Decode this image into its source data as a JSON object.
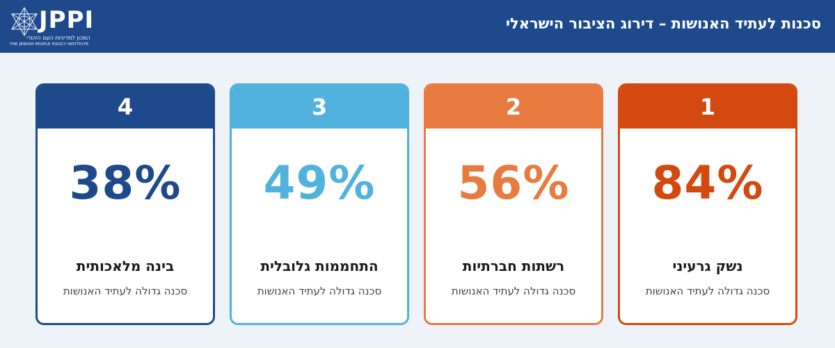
{
  "header": {
    "title": "סכנות לעתיד האנושות – דירוג הציבור הישראלי",
    "logo_text": "JPPI",
    "logo_sub_he": "המכון למדיניות העם היהודי",
    "logo_sub_en": "THE JEWISH PEOPLE POLICY INSTITUTE"
  },
  "colors": {
    "header_bg": "#1e4a8c",
    "page_bg": "#eef3f9"
  },
  "chart_data": {
    "type": "bar",
    "title": "סכנות לעתיד האנושות – דירוג הציבור הישראלי",
    "unit": "%",
    "items": [
      {
        "rank": "1",
        "value": 84,
        "value_label": "84%",
        "category": "נשק גרעיני",
        "sublabel": "סכנה גדולה לעתיד האנושות",
        "color": "#d4490f"
      },
      {
        "rank": "2",
        "value": 56,
        "value_label": "56%",
        "category": "רשתות חברתיות",
        "sublabel": "סכנה גדולה לעתיד האנושות",
        "color": "#e87b40"
      },
      {
        "rank": "3",
        "value": 49,
        "value_label": "49%",
        "category": "התחממות גלובלית",
        "sublabel": "סכנה גדולה לעתיד האנושות",
        "color": "#50b2dd"
      },
      {
        "rank": "4",
        "value": 38,
        "value_label": "38%",
        "category": "בינה מלאכותית",
        "sublabel": "סכנה גדולה לעתיד האנושות",
        "color": "#1e4a8c"
      }
    ]
  }
}
